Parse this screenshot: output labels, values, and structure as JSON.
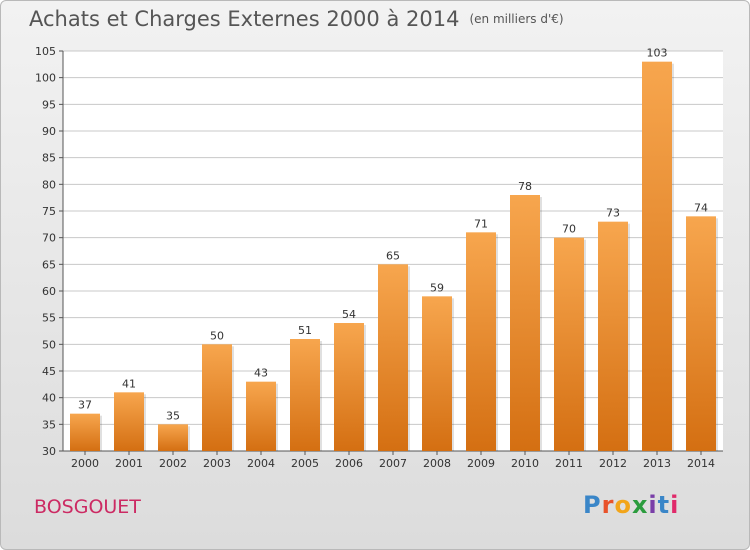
{
  "header": {
    "title": "Achats et Charges Externes 2000 à 2014",
    "unit": "(en milliers d'€)"
  },
  "footer": {
    "commune": "BOSGOUET",
    "logo": "Proxiti",
    "logo_colors": [
      "#3a86c8",
      "#e8522a",
      "#f2a51a",
      "#2b9c3e",
      "#7a3fa8",
      "#3a86c8",
      "#e02a6a"
    ]
  },
  "colors": {
    "bar_top": "#f7a64e",
    "bar_bottom": "#d46f12",
    "grid": "#c8c8c8",
    "plot_bg": "#ffffff"
  },
  "chart_data": {
    "type": "bar",
    "categories": [
      "2000",
      "2001",
      "2002",
      "2003",
      "2004",
      "2005",
      "2006",
      "2007",
      "2008",
      "2009",
      "2010",
      "2011",
      "2012",
      "2013",
      "2014"
    ],
    "values": [
      37,
      41,
      35,
      50,
      43,
      51,
      54,
      65,
      59,
      71,
      78,
      70,
      73,
      103,
      74
    ],
    "ylim": [
      30,
      105
    ],
    "yticks": [
      30,
      35,
      40,
      45,
      50,
      55,
      60,
      65,
      70,
      75,
      80,
      85,
      90,
      95,
      100,
      105
    ],
    "grid": true
  }
}
